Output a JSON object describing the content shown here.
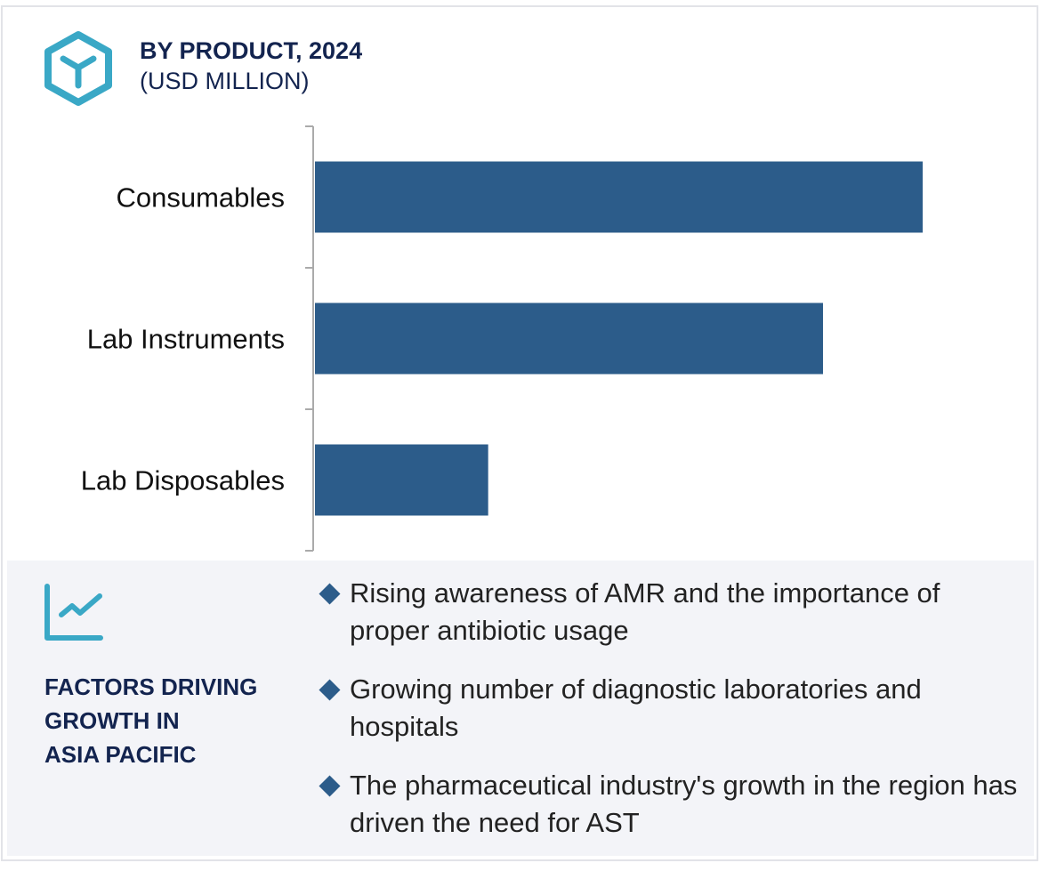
{
  "header": {
    "title": "BY PRODUCT, 2024",
    "subtitle": "(USD MILLION)",
    "icon": "cube-icon"
  },
  "colors": {
    "bar": "#2c5c8a",
    "accent": "#3aa8c6",
    "title": "#13244f",
    "panel": "#f3f4f8"
  },
  "chart_data": {
    "type": "bar",
    "orientation": "horizontal",
    "title": "BY PRODUCT, 2024",
    "subtitle": "(USD MILLION)",
    "categories": [
      "Consumables",
      "Lab Instruments",
      "Lab Disposables"
    ],
    "values": [
      1.0,
      0.836,
      0.285
    ],
    "value_note": "relative lengths; no axis values printed",
    "xlim": [
      0,
      1.0
    ],
    "grid": false,
    "legend": "none"
  },
  "factors": {
    "icon": "trend-chart-icon",
    "heading_lines": [
      "FACTORS DRIVING",
      "GROWTH IN",
      "ASIA PACIFIC"
    ],
    "items": [
      "Rising awareness of AMR and the importance of proper antibiotic usage",
      "Growing number of diagnostic laboratories and hospitals",
      "The pharmaceutical industry's growth in the region has driven the need for AST"
    ]
  }
}
